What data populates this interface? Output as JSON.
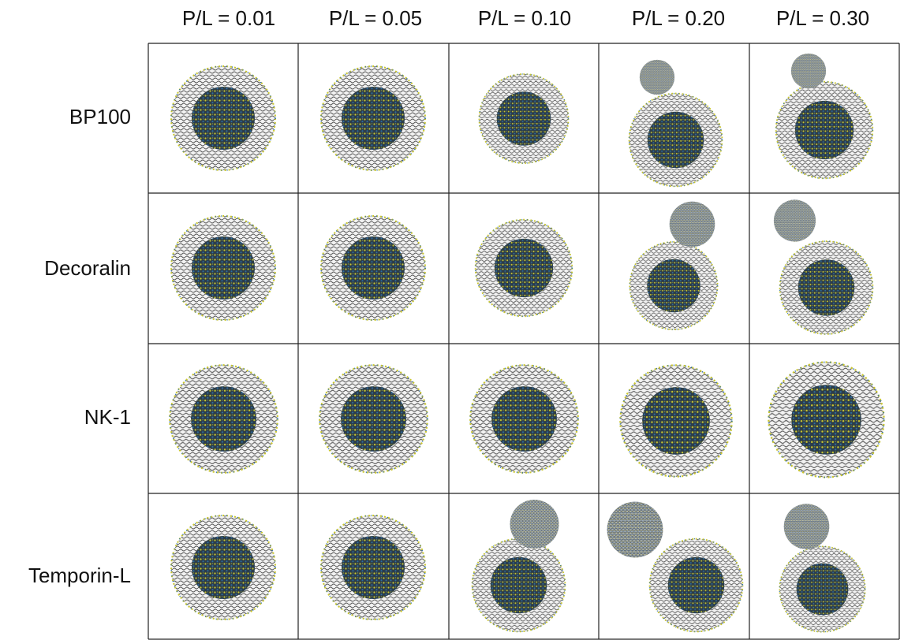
{
  "columns": [
    "P/L = 0.01",
    "P/L = 0.05",
    "P/L = 0.10",
    "P/L = 0.20",
    "P/L = 0.30"
  ],
  "rows": [
    "BP100",
    "Decoralin",
    "NK-1",
    "Temporin-L"
  ]
}
